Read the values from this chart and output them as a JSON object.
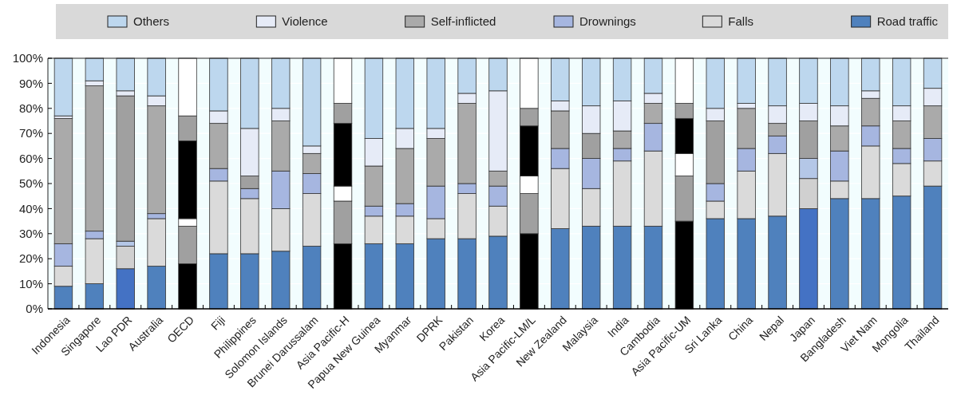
{
  "chart_data": {
    "type": "bar",
    "stacked": true,
    "legend": "top",
    "grid": "y",
    "categories": [
      "Indonesia",
      "Singapore",
      "Lao PDR",
      "Australia",
      "OECD",
      "Fiji",
      "Philippines",
      "Solomon Islands",
      "Brunei Darussalam",
      "Asia Pacific-H",
      "Papua New Guinea",
      "Myanmar",
      "DPRK",
      "Pakistan",
      "Korea",
      "Asia Pacific-LM/L",
      "New Zealand",
      "Malaysia",
      "India",
      "Cambodia",
      "Asia Pacific-UM",
      "Sri Lanka",
      "China",
      "Nepal",
      "Japan",
      "Bangladesh",
      "Viet Nam",
      "Mongolia",
      "Thailand"
    ],
    "ylim": [
      0,
      100
    ],
    "yticks": [
      {
        "value": 0,
        "label": "0%"
      },
      {
        "value": 10,
        "label": "10%"
      },
      {
        "value": 20,
        "label": "20%"
      },
      {
        "value": 30,
        "label": "30%"
      },
      {
        "value": 40,
        "label": "40%"
      },
      {
        "value": 50,
        "label": "50%"
      },
      {
        "value": 60,
        "label": "60%"
      },
      {
        "value": 70,
        "label": "70%"
      },
      {
        "value": 80,
        "label": "80%"
      },
      {
        "value": 90,
        "label": "90%"
      },
      {
        "value": 100,
        "label": "100%"
      }
    ],
    "series": [
      {
        "name": "Road traffic",
        "color": "#4f81bd",
        "colors": [
          "#4f81bd",
          "#4f81bd",
          "#4472c4",
          "#4f81bd",
          "#000000",
          "#4f81bd",
          "#4f81bd",
          "#4f81bd",
          "#4f81bd",
          "#000000",
          "#4f81bd",
          "#4f81bd",
          "#4f81bd",
          "#4f81bd",
          "#4f81bd",
          "#000000",
          "#4f81bd",
          "#4f81bd",
          "#4f81bd",
          "#4f81bd",
          "#000000",
          "#4f81bd",
          "#4f81bd",
          "#4f81bd",
          "#4472c4",
          "#4f81bd",
          "#4f81bd",
          "#4f81bd",
          "#4f81bd"
        ],
        "values": [
          9,
          10,
          16,
          17,
          18,
          22,
          22,
          23,
          25,
          26,
          26,
          26,
          28,
          28,
          29,
          30,
          32,
          33,
          33,
          33,
          35,
          36,
          36,
          37,
          40,
          44,
          44,
          45,
          49
        ]
      },
      {
        "name": "Falls",
        "color": "#dadada",
        "colors": [
          "#dadada",
          "#dadada",
          "#d0d0d0",
          "#dadada",
          "#a0a0a0",
          "#dadada",
          "#dadada",
          "#dadada",
          "#dadada",
          "#a0a0a0",
          "#dadada",
          "#dadada",
          "#dadada",
          "#dadada",
          "#dadada",
          "#a0a0a0",
          "#dadada",
          "#dadada",
          "#dadada",
          "#dadada",
          "#a0a0a0",
          "#dadada",
          "#dadada",
          "#dadada",
          "#d0d0d0",
          "#dadada",
          "#dadada",
          "#dadada",
          "#dadada"
        ],
        "values": [
          8,
          18,
          9,
          19,
          15,
          29,
          22,
          17,
          21,
          17,
          11,
          11,
          8,
          18,
          12,
          16,
          24,
          15,
          26,
          30,
          18,
          7,
          19,
          25,
          12,
          7,
          21,
          13,
          10
        ]
      },
      {
        "name": "Drownings",
        "color": "#a6b6e0",
        "colors": [
          "#a6b6e0",
          "#a6b6e0",
          "#b4c7e7",
          "#a6b6e0",
          "#ffffff",
          "#a6b6e0",
          "#a6b6e0",
          "#a6b6e0",
          "#a6b6e0",
          "#ffffff",
          "#a6b6e0",
          "#a6b6e0",
          "#a6b6e0",
          "#a6b6e0",
          "#a6b6e0",
          "#ffffff",
          "#a6b6e0",
          "#a6b6e0",
          "#a6b6e0",
          "#a6b6e0",
          "#ffffff",
          "#a6b6e0",
          "#a6b6e0",
          "#a6b6e0",
          "#b4c7e7",
          "#a6b6e0",
          "#a6b6e0",
          "#a6b6e0",
          "#a6b6e0"
        ],
        "values": [
          9,
          3,
          2,
          2,
          3,
          5,
          4,
          15,
          8,
          6,
          4,
          5,
          13,
          4,
          8,
          7,
          8,
          12,
          5,
          11,
          9,
          7,
          9,
          7,
          8,
          12,
          8,
          6,
          9
        ]
      },
      {
        "name": "Self-inflicted",
        "color": "#aaaaaa",
        "colors": [
          "#aaaaaa",
          "#aaaaaa",
          "#a0a0a0",
          "#aaaaaa",
          "#000000",
          "#aaaaaa",
          "#a0a0a0",
          "#aaaaaa",
          "#aaaaaa",
          "#000000",
          "#aaaaaa",
          "#aaaaaa",
          "#aaaaaa",
          "#aaaaaa",
          "#aaaaaa",
          "#000000",
          "#aaaaaa",
          "#a0a0a0",
          "#aaaaaa",
          "#aaaaaa",
          "#000000",
          "#a0a0a0",
          "#aaaaaa",
          "#aaaaaa",
          "#a0a0a0",
          "#aaaaaa",
          "#aaaaaa",
          "#aaaaaa",
          "#aaaaaa"
        ],
        "values": [
          50,
          58,
          58,
          43,
          31,
          18,
          5,
          20,
          8,
          25,
          16,
          22,
          19,
          32,
          6,
          20,
          15,
          10,
          7,
          8,
          14,
          25,
          16,
          5,
          15,
          10,
          11,
          11,
          13
        ]
      },
      {
        "name": "Violence",
        "color": "#e6ebf7",
        "colors": [
          "#e6ebf7",
          "#e6ebf7",
          "#e6ebf7",
          "#e6ebf7",
          "#a0a0a0",
          "#e6ebf7",
          "#e6ebf7",
          "#e6ebf7",
          "#e6ebf7",
          "#a0a0a0",
          "#e6ebf7",
          "#e6ebf7",
          "#e6ebf7",
          "#e6ebf7",
          "#e6ebf7",
          "#a0a0a0",
          "#e6ebf7",
          "#e6ebf7",
          "#e6ebf7",
          "#e6ebf7",
          "#a0a0a0",
          "#e6ebf7",
          "#e6ebf7",
          "#e6ebf7",
          "#e6ebf7",
          "#e6ebf7",
          "#e6ebf7",
          "#e6ebf7",
          "#e6ebf7"
        ],
        "values": [
          1,
          2,
          2,
          4,
          10,
          5,
          19,
          5,
          3,
          8,
          11,
          8,
          4,
          4,
          32,
          7,
          4,
          11,
          12,
          4,
          6,
          5,
          2,
          7,
          7,
          8,
          3,
          6,
          7
        ]
      },
      {
        "name": "Others",
        "color": "#bdd7ee",
        "colors": [
          "#bdd7ee",
          "#bdd7ee",
          "#bdd7ee",
          "#bdd7ee",
          "#ffffff",
          "#bdd7ee",
          "#bdd7ee",
          "#bdd7ee",
          "#bdd7ee",
          "#ffffff",
          "#bdd7ee",
          "#bdd7ee",
          "#bdd7ee",
          "#bdd7ee",
          "#bdd7ee",
          "#ffffff",
          "#bdd7ee",
          "#bdd7ee",
          "#bdd7ee",
          "#bdd7ee",
          "#ffffff",
          "#bdd7ee",
          "#bdd7ee",
          "#bdd7ee",
          "#bdd7ee",
          "#bdd7ee",
          "#bdd7ee",
          "#bdd7ee",
          "#bdd7ee"
        ],
        "values": [
          23,
          9,
          13,
          15,
          23,
          21,
          28,
          20,
          35,
          18,
          32,
          28,
          28,
          14,
          13,
          20,
          17,
          19,
          17,
          14,
          18,
          20,
          18,
          19,
          18,
          19,
          13,
          19,
          12
        ]
      }
    ]
  }
}
